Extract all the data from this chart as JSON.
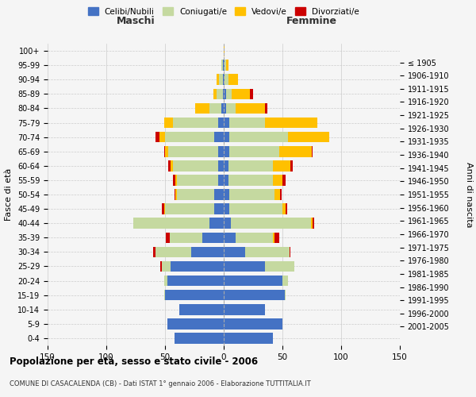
{
  "age_groups": [
    "0-4",
    "5-9",
    "10-14",
    "15-19",
    "20-24",
    "25-29",
    "30-34",
    "35-39",
    "40-44",
    "45-49",
    "50-54",
    "55-59",
    "60-64",
    "65-69",
    "70-74",
    "75-79",
    "80-84",
    "85-89",
    "90-94",
    "95-99",
    "100+"
  ],
  "birth_years": [
    "2001-2005",
    "1996-2000",
    "1991-1995",
    "1986-1990",
    "1981-1985",
    "1976-1980",
    "1971-1975",
    "1966-1970",
    "1961-1965",
    "1956-1960",
    "1951-1955",
    "1946-1950",
    "1941-1945",
    "1936-1940",
    "1931-1935",
    "1926-1930",
    "1921-1925",
    "1916-1920",
    "1911-1915",
    "1906-1910",
    "≤ 1905"
  ],
  "male": {
    "celibi": [
      42,
      48,
      38,
      50,
      48,
      45,
      28,
      18,
      12,
      8,
      8,
      5,
      5,
      5,
      8,
      5,
      2,
      1,
      1,
      1,
      0
    ],
    "coniugati": [
      0,
      0,
      0,
      1,
      3,
      8,
      30,
      28,
      65,
      42,
      32,
      35,
      38,
      42,
      42,
      38,
      10,
      5,
      3,
      1,
      0
    ],
    "vedovi": [
      0,
      0,
      0,
      0,
      0,
      0,
      0,
      0,
      0,
      1,
      1,
      1,
      2,
      3,
      5,
      8,
      12,
      3,
      2,
      0,
      0
    ],
    "divorziati": [
      0,
      0,
      0,
      0,
      0,
      1,
      2,
      3,
      0,
      2,
      1,
      2,
      2,
      1,
      3,
      0,
      0,
      0,
      0,
      0,
      0
    ]
  },
  "female": {
    "nubili": [
      42,
      50,
      35,
      52,
      50,
      35,
      18,
      10,
      6,
      5,
      5,
      4,
      4,
      5,
      5,
      5,
      2,
      2,
      1,
      1,
      0
    ],
    "coniugate": [
      0,
      0,
      0,
      1,
      5,
      25,
      38,
      32,
      68,
      45,
      38,
      38,
      38,
      42,
      50,
      30,
      8,
      5,
      3,
      1,
      0
    ],
    "vedove": [
      0,
      0,
      0,
      0,
      0,
      0,
      0,
      1,
      2,
      3,
      5,
      8,
      15,
      28,
      35,
      45,
      25,
      15,
      8,
      2,
      1
    ],
    "divorziate": [
      0,
      0,
      0,
      0,
      0,
      0,
      1,
      4,
      1,
      1,
      1,
      3,
      2,
      1,
      0,
      0,
      2,
      3,
      0,
      0,
      0
    ]
  },
  "colors": {
    "celibi": "#4472c4",
    "coniugati": "#c5d9a0",
    "vedovi": "#ffc000",
    "divorziati": "#cc0000"
  },
  "title": "Popolazione per età, sesso e stato civile - 2006",
  "subtitle": "COMUNE DI CASACALENDA (CB) - Dati ISTAT 1° gennaio 2006 - Elaborazione TUTTITALIA.IT",
  "xlabel_left": "Maschi",
  "xlabel_right": "Femmine",
  "ylabel_left": "Fasce di età",
  "ylabel_right": "Anni di nascita",
  "xlim": 150,
  "bg_color": "#f5f5f5",
  "grid_color": "#cccccc"
}
